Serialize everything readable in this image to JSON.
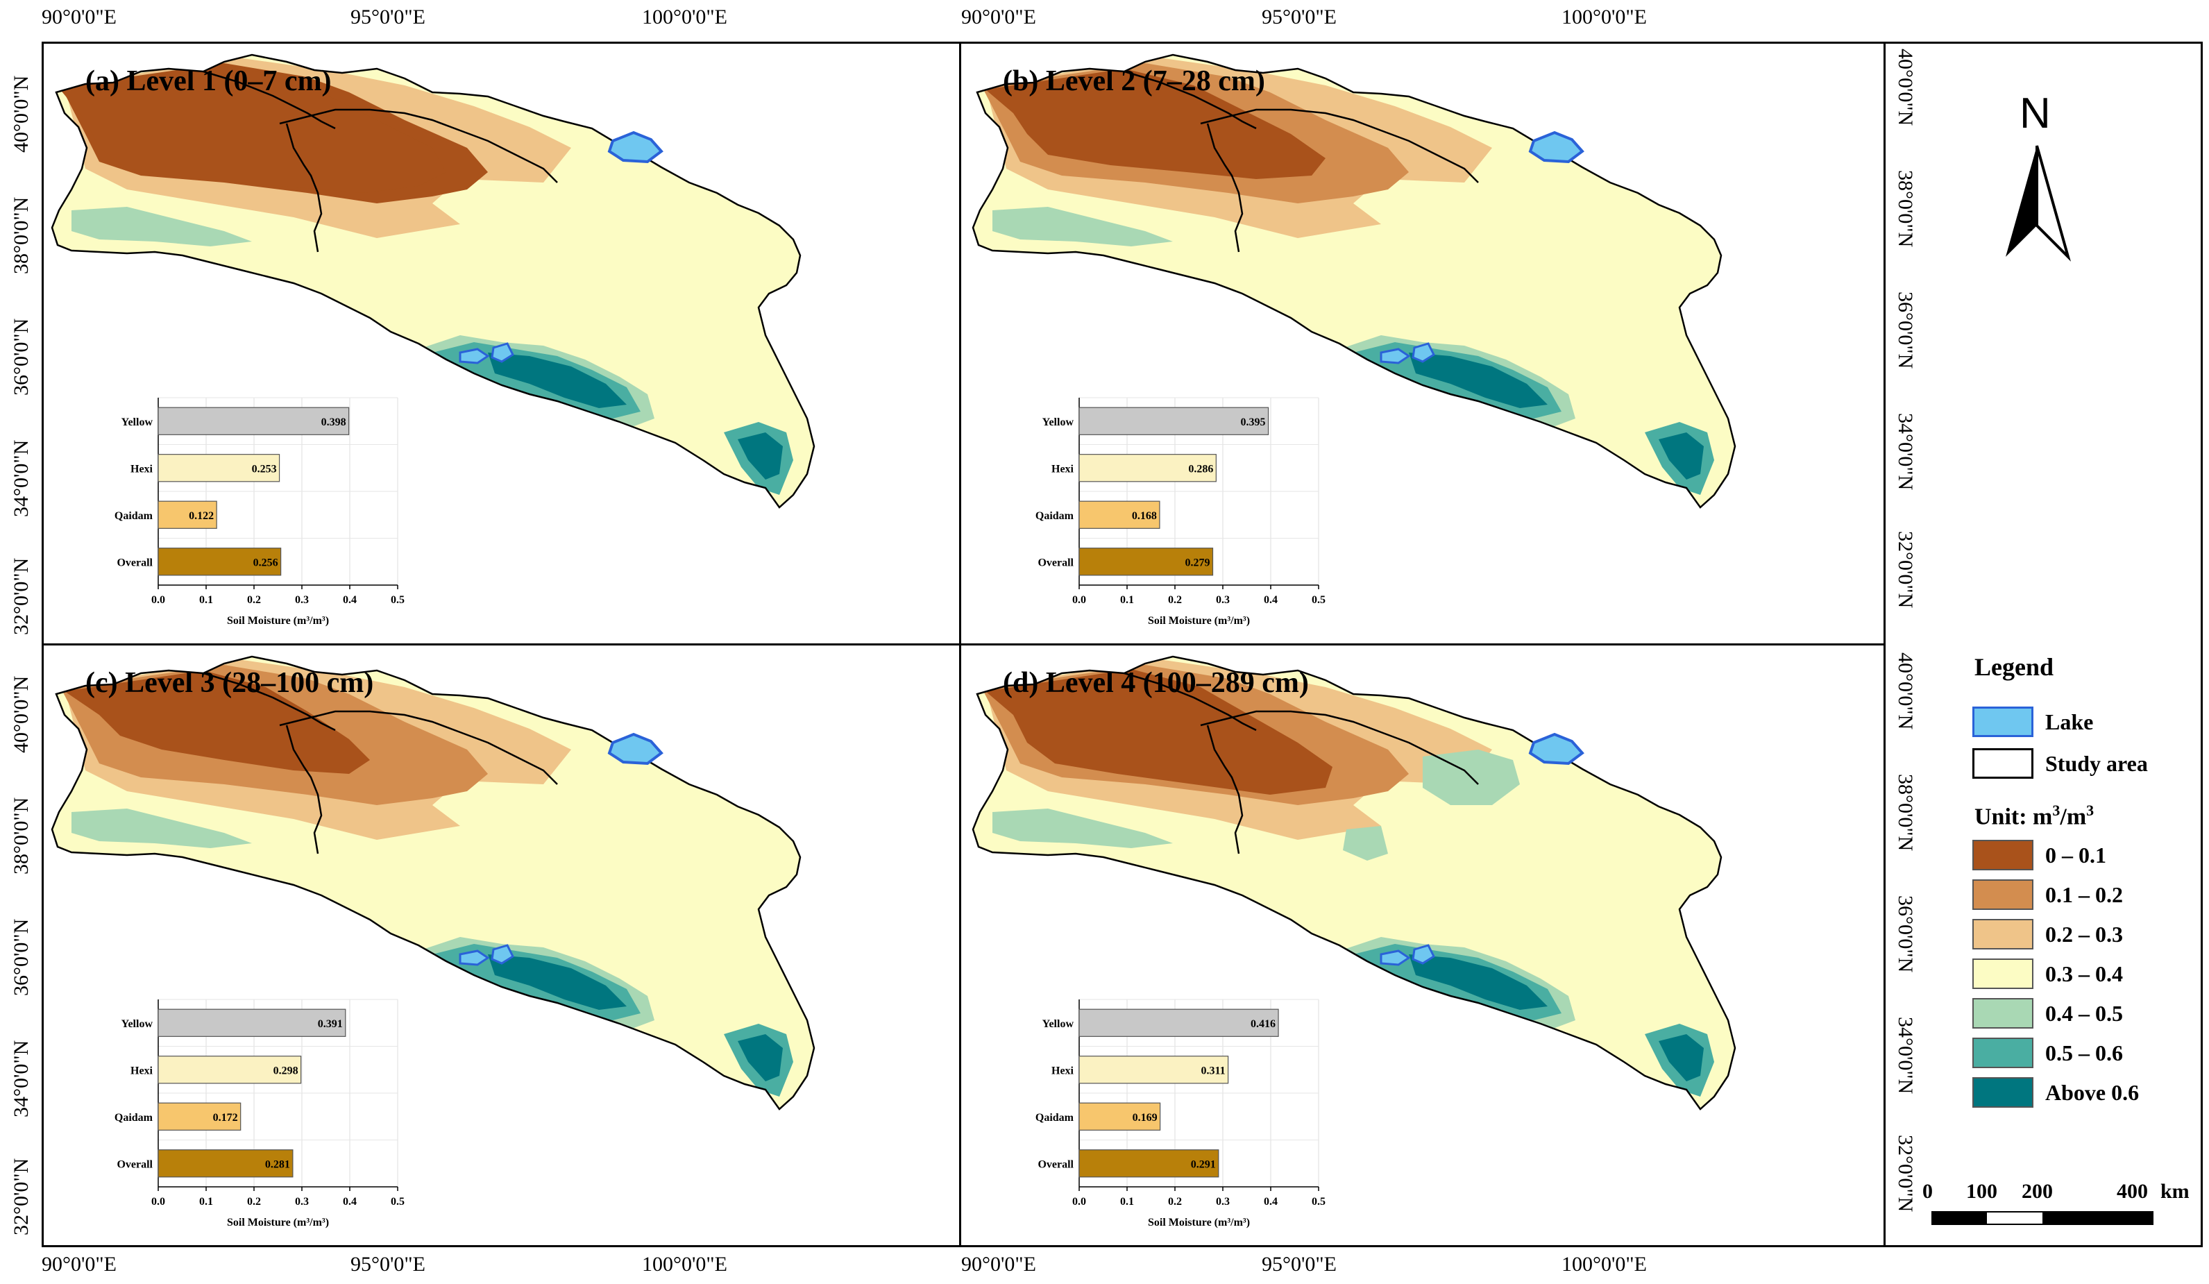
{
  "lon_labels_top": [
    "90°0'0\"E",
    "95°0'0\"E",
    "100°0'0\"E",
    "90°0'0\"E",
    "95°0'0\"E",
    "100°0'0\"E"
  ],
  "lon_labels_bottom": [
    "90°0'0\"E",
    "95°0'0\"E",
    "100°0'0\"E",
    "90°0'0\"E",
    "95°0'0\"E",
    "100°0'0\"E"
  ],
  "lat_labels": [
    "40°0'0\"N",
    "38°0'0\"N",
    "36°0'0\"N",
    "34°0'0\"N",
    "32°0'0\"N"
  ],
  "panels": [
    {
      "title": "(a) Level 1 (0–7 cm)"
    },
    {
      "title": "(b) Level 2 (7–28 cm)"
    },
    {
      "title": "(c) Level 3 (28–100 cm)"
    },
    {
      "title": "(d) Level 4 (100–289 cm)"
    }
  ],
  "chart_data": [
    {
      "type": "bar",
      "orientation": "horizontal",
      "categories": [
        "Yellow",
        "Hexi",
        "Qaidam",
        "Overall"
      ],
      "values": [
        0.398,
        0.253,
        0.122,
        0.256
      ],
      "value_labels": [
        "0.398",
        "0.253",
        "0.122",
        "0.256"
      ],
      "xlabel": "Soil Moisture (m³/m³)",
      "xlim": [
        0,
        0.5
      ],
      "xticks": [
        "0.0",
        "0.1",
        "0.2",
        "0.3",
        "0.4",
        "0.5"
      ],
      "colors": [
        "#c8c8c8",
        "#fbf2c2",
        "#f7c66d",
        "#b8800a"
      ]
    },
    {
      "type": "bar",
      "orientation": "horizontal",
      "categories": [
        "Yellow",
        "Hexi",
        "Qaidam",
        "Overall"
      ],
      "values": [
        0.395,
        0.286,
        0.168,
        0.279
      ],
      "value_labels": [
        "0.395",
        "0.286",
        "0.168",
        "0.279"
      ],
      "xlabel": "Soil Moisture (m³/m³)",
      "xlim": [
        0,
        0.5
      ],
      "xticks": [
        "0.0",
        "0.1",
        "0.2",
        "0.3",
        "0.4",
        "0.5"
      ],
      "colors": [
        "#c8c8c8",
        "#fbf2c2",
        "#f7c66d",
        "#b8800a"
      ]
    },
    {
      "type": "bar",
      "orientation": "horizontal",
      "categories": [
        "Yellow",
        "Hexi",
        "Qaidam",
        "Overall"
      ],
      "values": [
        0.391,
        0.298,
        0.172,
        0.281
      ],
      "value_labels": [
        "0.391",
        "0.298",
        "0.172",
        "0.281"
      ],
      "xlabel": "Soil Moisture (m³/m³)",
      "xlim": [
        0,
        0.5
      ],
      "xticks": [
        "0.0",
        "0.1",
        "0.2",
        "0.3",
        "0.4",
        "0.5"
      ],
      "colors": [
        "#c8c8c8",
        "#fbf2c2",
        "#f7c66d",
        "#b8800a"
      ]
    },
    {
      "type": "bar",
      "orientation": "horizontal",
      "categories": [
        "Yellow",
        "Hexi",
        "Qaidam",
        "Overall"
      ],
      "values": [
        0.416,
        0.311,
        0.169,
        0.291
      ],
      "value_labels": [
        "0.416",
        "0.311",
        "0.169",
        "0.291"
      ],
      "xlabel": "Soil Moisture (m³/m³)",
      "xlim": [
        0,
        0.5
      ],
      "xticks": [
        "0.0",
        "0.1",
        "0.2",
        "0.3",
        "0.4",
        "0.5"
      ],
      "colors": [
        "#c8c8c8",
        "#fbf2c2",
        "#f7c66d",
        "#b8800a"
      ]
    }
  ],
  "north_label": "N",
  "legend": {
    "title": "Legend",
    "lake": "Lake",
    "study_area": "Study area",
    "unit_prefix": "Unit: m",
    "unit_sup1": "3",
    "unit_mid": "/m",
    "unit_sup2": "3",
    "classes": [
      {
        "label": "0 – 0.1",
        "color": "#a9521b"
      },
      {
        "label": "0.1 – 0.2",
        "color": "#d38d4f"
      },
      {
        "label": "0.2 – 0.3",
        "color": "#efc489"
      },
      {
        "label": "0.3 – 0.4",
        "color": "#fcfcc4"
      },
      {
        "label": "0.4 – 0.5",
        "color": "#a9d8b4"
      },
      {
        "label": "0.5 – 0.6",
        "color": "#4aaea2"
      },
      {
        "label": "Above 0.6",
        "color": "#00767f"
      }
    ],
    "lake_color": "#6fc7f0",
    "lake_border": "#2a62d8"
  },
  "scale_bar": {
    "labels": [
      "0",
      "100",
      "200",
      "400"
    ],
    "unit": "km"
  }
}
